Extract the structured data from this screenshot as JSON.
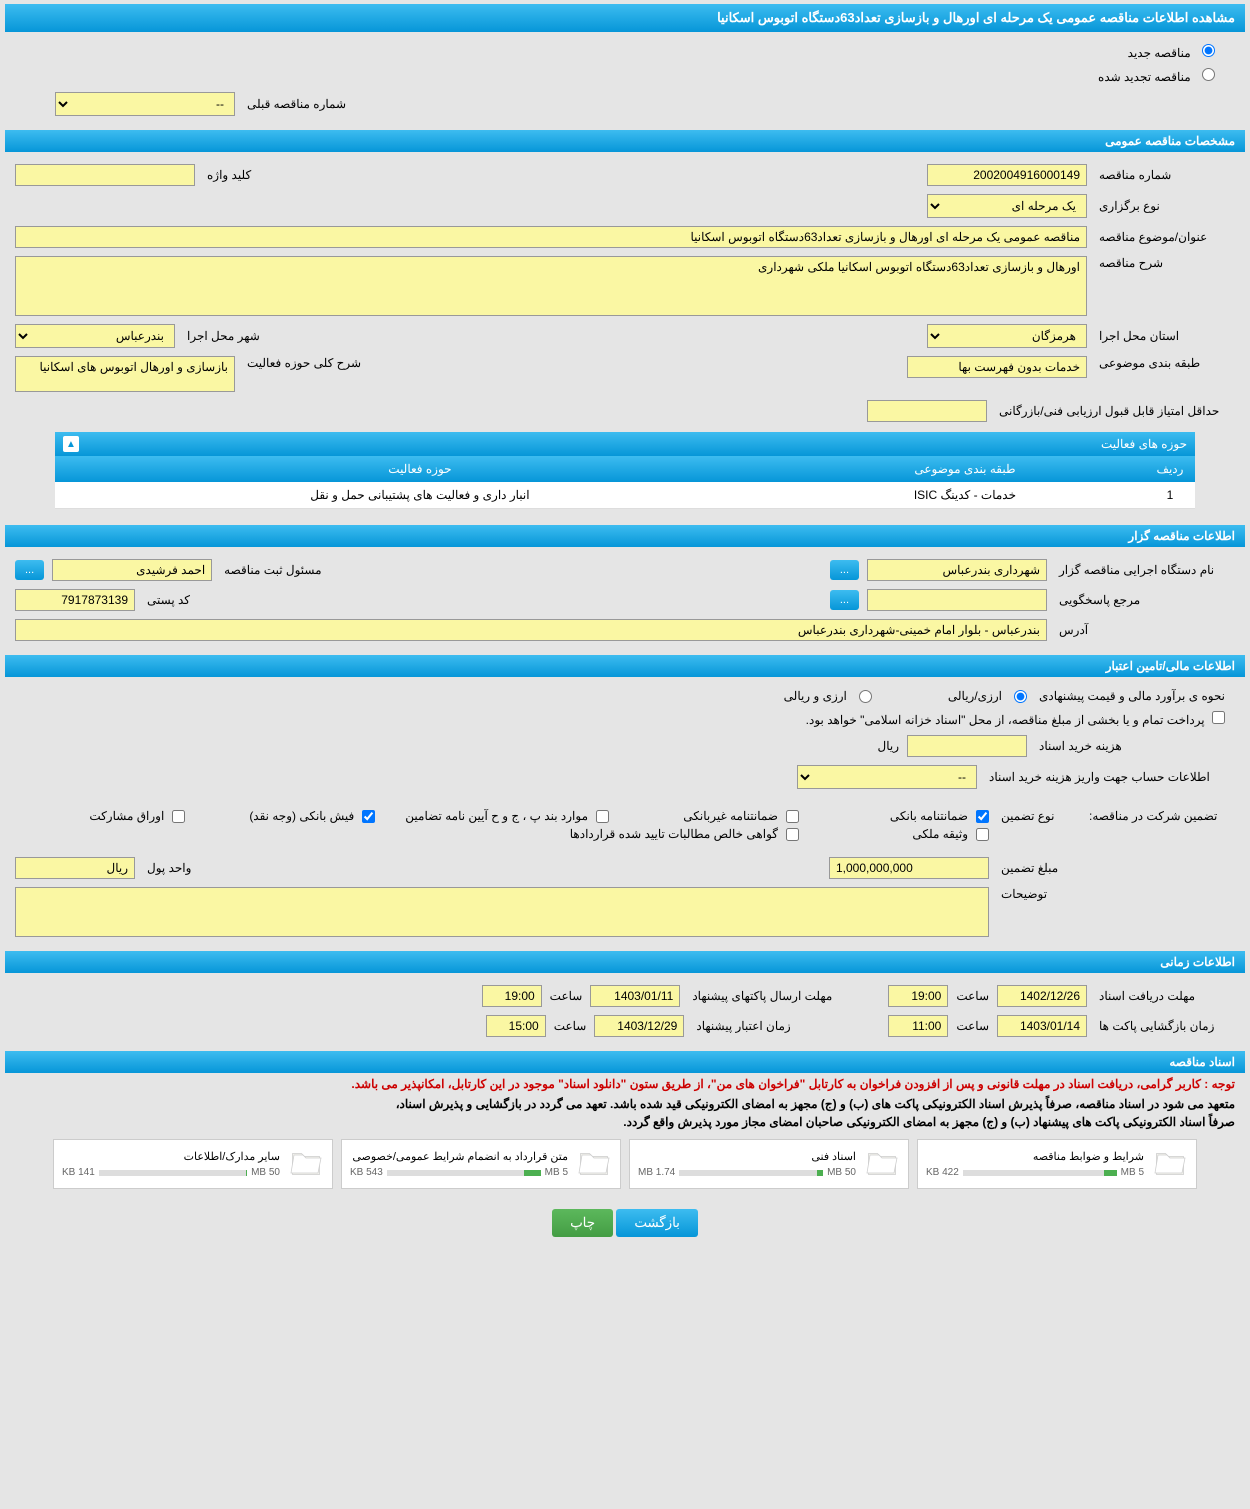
{
  "header": {
    "title": "مشاهده اطلاعات مناقصه عمومی یک مرحله ای اورهال و بازسازی تعداد63دستگاه اتوبوس اسکانیا"
  },
  "radios": {
    "new_tender": "مناقصه جدید",
    "renewed_tender": "مناقصه تجدید شده"
  },
  "prev_number": {
    "label": "شماره مناقصه قبلی",
    "value": "--"
  },
  "sections": {
    "general": "مشخصات مناقصه عمومی",
    "organizer": "اطلاعات مناقصه گزار",
    "financial": "اطلاعات مالی/تامین اعتبار",
    "timing": "اطلاعات زمانی",
    "docs": "اسناد مناقصه"
  },
  "general": {
    "tender_number_label": "شماره مناقصه",
    "tender_number": "2002004916000149",
    "keyword_label": "کلید واژه",
    "keyword": "",
    "holding_type_label": "نوع برگزاری",
    "holding_type": "یک مرحله ای",
    "subject_label": "عنوان/موضوع مناقصه",
    "subject": "مناقصه عمومی یک مرحله ای اورهال و بازسازی تعداد63دستگاه اتوبوس اسکانیا",
    "description_label": "شرح مناقصه",
    "description": "اورهال و بازسازی تعداد63دستگاه اتوبوس اسکانیا ملکی شهرداری",
    "province_label": "استان محل اجرا",
    "province": "هرمزگان",
    "city_label": "شهر محل اجرا",
    "city": "بندرعباس",
    "category_label": "طبقه بندی موضوعی",
    "category": "خدمات بدون فهرست بها",
    "activity_desc_label": "شرح کلی حوزه فعالیت",
    "activity_desc": "بازسازی و اورهال اتوبوس های اسکانیا",
    "min_score_label": "حداقل امتیاز قابل قبول ارزیابی فنی/بازرگانی",
    "min_score": ""
  },
  "activity": {
    "panel_title": "حوزه های فعالیت",
    "cols": {
      "row": "ردیف",
      "category": "طبقه بندی موضوعی",
      "field": "حوزه فعالیت"
    },
    "rows": [
      {
        "n": "1",
        "cat": "خدمات - کدینگ ISIC",
        "field": "انبار داری و فعالیت های پشتیبانی حمل و نقل"
      }
    ]
  },
  "organizer": {
    "exec_label": "نام دستگاه اجرایی مناقصه گزار",
    "exec": "شهرداری بندرعباس",
    "manager_label": "مسئول ثبت مناقصه",
    "manager": "احمد فرشیدی",
    "responder_label": "مرجع پاسخگویی",
    "responder": "",
    "postal_label": "کد پستی",
    "postal": "7917873139",
    "address_label": "آدرس",
    "address": "بندرعباس - بلوار امام خمینی-شهرداری بندرعباس"
  },
  "financial": {
    "estimate_label": "نحوه ی برآورد مالی و قیمت پیشنهادی",
    "opt_rial": "ارزی/ریالی",
    "opt_currency": "ارزی و ریالی",
    "payment_note": "پرداخت تمام و یا بخشی از مبلغ مناقصه، از محل \"اسناد خزانه اسلامی\" خواهد بود.",
    "doc_cost_label": "هزینه خرید اسناد",
    "doc_cost": "",
    "doc_cost_unit": "ریال",
    "deposit_account_label": "اطلاعات حساب جهت واریز هزینه خرید اسناد",
    "deposit_account": "--",
    "participation_label": "تضمین شرکت در مناقصه:",
    "guarantee_type_label": "نوع تضمین",
    "guarantees": {
      "bank": "ضمانتنامه بانکی",
      "nonbank": "ضمانتنامه غیربانکی",
      "regulation": "موارد بند پ ، ج و ح آیین نامه تضامین",
      "cash": "فیش بانکی (وجه نقد)",
      "bonds": "اوراق مشارکت",
      "property": "وثیقه ملکی",
      "receivables": "گواهی خالص مطالبات تایید شده قراردادها"
    },
    "amount_label": "مبلغ تضمین",
    "amount": "1,000,000,000",
    "unit_label": "واحد پول",
    "unit": "ریال",
    "notes_label": "توضیحات",
    "notes": ""
  },
  "timing": {
    "receive_deadline_label": "مهلت دریافت اسناد",
    "receive_deadline_date": "1402/12/26",
    "receive_deadline_time_label": "ساعت",
    "receive_deadline_time": "19:00",
    "submit_deadline_label": "مهلت ارسال پاکتهای پیشنهاد",
    "submit_deadline_date": "1403/01/11",
    "submit_deadline_time": "19:00",
    "opening_label": "زمان بازگشایی پاکت ها",
    "opening_date": "1403/01/14",
    "opening_time_label": "ساعت",
    "opening_time": "11:00",
    "validity_label": "زمان اعتبار پیشنهاد",
    "validity_date": "1403/12/29",
    "validity_time": "15:00"
  },
  "docs": {
    "note_red": "توجه : کاربر گرامی، دریافت اسناد در مهلت قانونی و پس از افزودن فراخوان به کارتابل \"فراخوان های من\"، از طریق ستون \"دانلود اسناد\" موجود در این کارتابل، امکانپذیر می باشد.",
    "note1": "متعهد می شود در اسناد مناقصه، صرفاً پذیرش اسناد الکترونیکی پاکت های (ب) و (ج) مجهز به امضای الکترونیکی قید شده باشد. تعهد می گردد در بازگشایی و پذیرش اسناد،",
    "note2": "صرفاً اسناد الکترونیکی پاکت های پیشنهاد (ب) و (ج) مجهز به امضای الکترونیکی صاحبان امضای مجاز مورد پذیرش واقع گردد.",
    "files": [
      {
        "title": "شرایط و ضوابط مناقصه",
        "size": "422 KB",
        "limit": "5 MB",
        "pct": 8
      },
      {
        "title": "اسناد فنی",
        "size": "1.74 MB",
        "limit": "50 MB",
        "pct": 4
      },
      {
        "title": "متن قرارداد به انضمام شرایط عمومی/خصوصی",
        "size": "543 KB",
        "limit": "5 MB",
        "pct": 11
      },
      {
        "title": "سایر مدارک/اطلاعات",
        "size": "141 KB",
        "limit": "50 MB",
        "pct": 1
      }
    ]
  },
  "buttons": {
    "back": "بازگشت",
    "print": "چاپ",
    "more": "..."
  }
}
